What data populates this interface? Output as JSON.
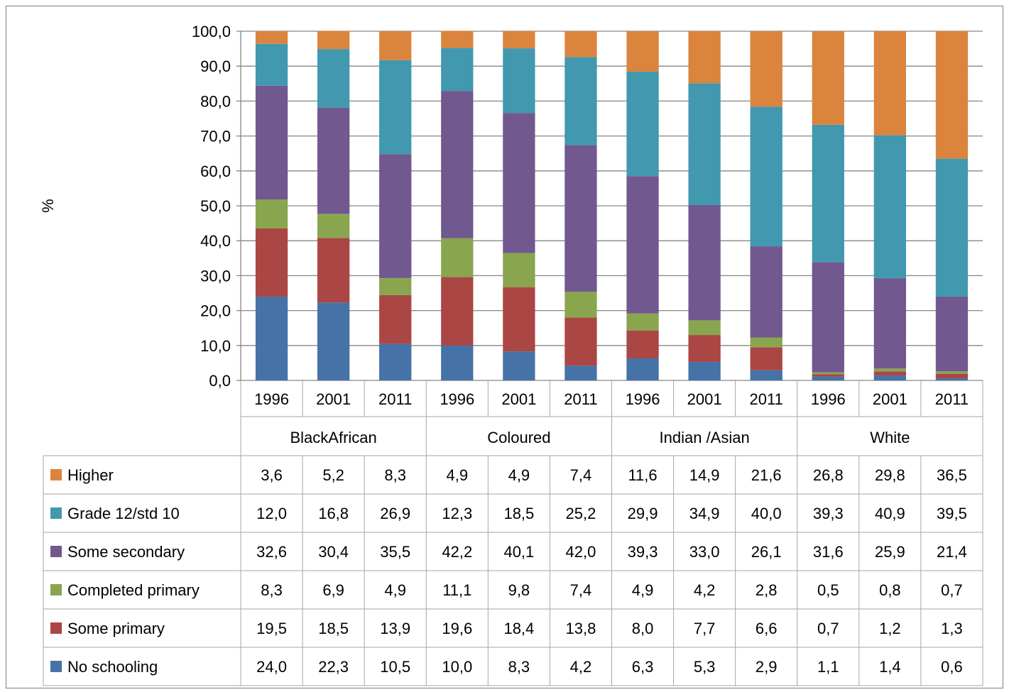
{
  "chart_data": {
    "type": "bar",
    "stacked": true,
    "ylabel": "%",
    "ylim": [
      0,
      100
    ],
    "y_ticks": [
      "0,0",
      "10,0",
      "20,0",
      "30,0",
      "40,0",
      "50,0",
      "60,0",
      "70,0",
      "80,0",
      "90,0",
      "100,0"
    ],
    "grid": true,
    "groups": [
      {
        "name": "BlackAfrican",
        "years": [
          "1996",
          "2001",
          "2011"
        ]
      },
      {
        "name": "Coloured",
        "years": [
          "1996",
          "2001",
          "2011"
        ]
      },
      {
        "name": "Indian /Asian",
        "years": [
          "1996",
          "2001",
          "2011"
        ]
      },
      {
        "name": "White",
        "years": [
          "1996",
          "2001",
          "2011"
        ]
      }
    ],
    "series": [
      {
        "name": "No schooling",
        "color": "#4572a7",
        "values": [
          24.0,
          22.3,
          10.5,
          10.0,
          8.3,
          4.2,
          6.3,
          5.3,
          2.9,
          1.1,
          1.4,
          0.6
        ],
        "labels": [
          "24,0",
          "22,3",
          "10,5",
          "10,0",
          "8,3",
          "4,2",
          "6,3",
          "5,3",
          "2,9",
          "1,1",
          "1,4",
          "0,6"
        ]
      },
      {
        "name": "Some primary",
        "color": "#aa4643",
        "values": [
          19.5,
          18.5,
          13.9,
          19.6,
          18.4,
          13.8,
          8.0,
          7.7,
          6.6,
          0.7,
          1.2,
          1.3
        ],
        "labels": [
          "19,5",
          "18,5",
          "13,9",
          "19,6",
          "18,4",
          "13,8",
          "8,0",
          "7,7",
          "6,6",
          "0,7",
          "1,2",
          "1,3"
        ]
      },
      {
        "name": "Completed primary",
        "color": "#89a54e",
        "values": [
          8.3,
          6.9,
          4.9,
          11.1,
          9.8,
          7.4,
          4.9,
          4.2,
          2.8,
          0.5,
          0.8,
          0.7
        ],
        "labels": [
          "8,3",
          "6,9",
          "4,9",
          "11,1",
          "9,8",
          "7,4",
          "4,9",
          "4,2",
          "2,8",
          "0,5",
          "0,8",
          "0,7"
        ]
      },
      {
        "name": "Some secondary",
        "color": "#71588f",
        "values": [
          32.6,
          30.4,
          35.5,
          42.2,
          40.1,
          42.0,
          39.3,
          33.0,
          26.1,
          31.6,
          25.9,
          21.4
        ],
        "labels": [
          "32,6",
          "30,4",
          "35,5",
          "42,2",
          "40,1",
          "42,0",
          "39,3",
          "33,0",
          "26,1",
          "31,6",
          "25,9",
          "21,4"
        ]
      },
      {
        "name": "Grade 12/std 10",
        "color": "#4198af",
        "values": [
          12.0,
          16.8,
          26.9,
          12.3,
          18.5,
          25.2,
          29.9,
          34.9,
          40.0,
          39.3,
          40.9,
          39.5
        ],
        "labels": [
          "12,0",
          "16,8",
          "26,9",
          "12,3",
          "18,5",
          "25,2",
          "29,9",
          "34,9",
          "40,0",
          "39,3",
          "40,9",
          "39,5"
        ]
      },
      {
        "name": "Higher",
        "color": "#db843d",
        "values": [
          3.6,
          5.2,
          8.3,
          4.9,
          4.9,
          7.4,
          11.6,
          14.9,
          21.6,
          26.8,
          29.8,
          36.5
        ],
        "labels": [
          "3,6",
          "5,2",
          "8,3",
          "4,9",
          "4,9",
          "7,4",
          "11,6",
          "14,9",
          "21,6",
          "26,8",
          "29,8",
          "36,5"
        ]
      }
    ],
    "table_row_order": [
      "Higher",
      "Grade 12/std 10",
      "Some secondary",
      "Completed primary",
      "Some primary",
      "No schooling"
    ]
  }
}
